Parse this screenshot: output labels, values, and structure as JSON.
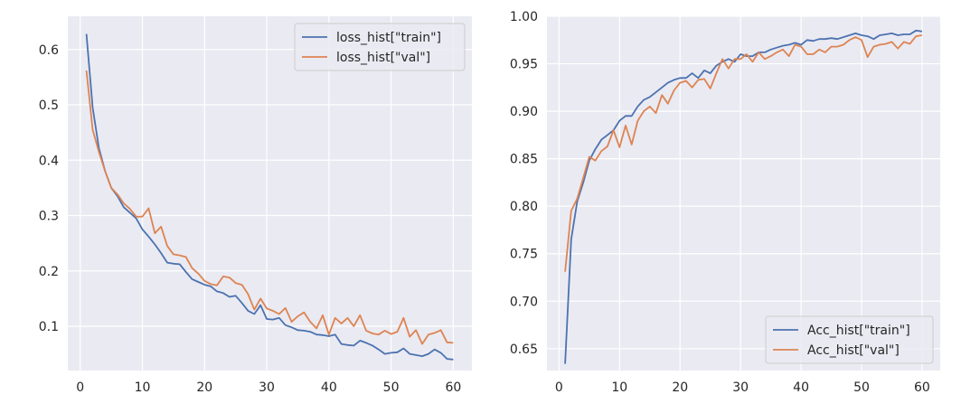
{
  "chart_data": [
    {
      "type": "line",
      "title": "",
      "xlabel": "",
      "ylabel": "",
      "xlim": [
        -2,
        63
      ],
      "ylim": [
        0.02,
        0.66
      ],
      "xticks": [
        0,
        10,
        20,
        30,
        40,
        50,
        60
      ],
      "yticks": [
        0.1,
        0.2,
        0.3,
        0.4,
        0.5,
        0.6
      ],
      "grid": true,
      "legend_position": "top-right",
      "x": [
        1,
        2,
        3,
        4,
        5,
        6,
        7,
        8,
        9,
        10,
        11,
        12,
        13,
        14,
        15,
        16,
        17,
        18,
        19,
        20,
        21,
        22,
        23,
        24,
        25,
        26,
        27,
        28,
        29,
        30,
        31,
        32,
        33,
        34,
        35,
        36,
        37,
        38,
        39,
        40,
        41,
        42,
        43,
        44,
        45,
        46,
        47,
        48,
        49,
        50,
        51,
        52,
        53,
        54,
        55,
        56,
        57,
        58,
        59,
        60
      ],
      "series": [
        {
          "name": "loss_hist[\"train\"]",
          "color": "#4c72b0",
          "values": [
            0.628,
            0.495,
            0.422,
            0.38,
            0.35,
            0.335,
            0.315,
            0.305,
            0.295,
            0.275,
            0.262,
            0.248,
            0.232,
            0.215,
            0.213,
            0.212,
            0.198,
            0.185,
            0.18,
            0.175,
            0.172,
            0.163,
            0.16,
            0.153,
            0.155,
            0.142,
            0.128,
            0.122,
            0.138,
            0.113,
            0.112,
            0.115,
            0.102,
            0.098,
            0.093,
            0.092,
            0.09,
            0.085,
            0.084,
            0.082,
            0.085,
            0.068,
            0.066,
            0.065,
            0.074,
            0.07,
            0.065,
            0.058,
            0.05,
            0.052,
            0.053,
            0.06,
            0.05,
            0.048,
            0.046,
            0.05,
            0.058,
            0.052,
            0.041,
            0.04
          ]
        },
        {
          "name": "loss_hist[\"val\"]",
          "color": "#dd8452",
          "values": [
            0.562,
            0.455,
            0.415,
            0.38,
            0.35,
            0.338,
            0.322,
            0.312,
            0.298,
            0.298,
            0.313,
            0.268,
            0.28,
            0.245,
            0.23,
            0.228,
            0.225,
            0.205,
            0.195,
            0.182,
            0.176,
            0.174,
            0.19,
            0.188,
            0.178,
            0.175,
            0.158,
            0.13,
            0.15,
            0.132,
            0.128,
            0.122,
            0.133,
            0.108,
            0.118,
            0.125,
            0.108,
            0.096,
            0.12,
            0.085,
            0.115,
            0.105,
            0.115,
            0.1,
            0.12,
            0.092,
            0.087,
            0.085,
            0.092,
            0.086,
            0.09,
            0.115,
            0.081,
            0.093,
            0.068,
            0.085,
            0.088,
            0.093,
            0.071,
            0.07
          ]
        }
      ]
    },
    {
      "type": "line",
      "title": "",
      "xlabel": "",
      "ylabel": "",
      "xlim": [
        -2,
        63
      ],
      "ylim": [
        0.627,
        1.0
      ],
      "xticks": [
        0,
        10,
        20,
        30,
        40,
        50,
        60
      ],
      "yticks": [
        0.65,
        0.7,
        0.75,
        0.8,
        0.85,
        0.9,
        0.95,
        1.0
      ],
      "grid": true,
      "legend_position": "bottom-right",
      "x": [
        1,
        2,
        3,
        4,
        5,
        6,
        7,
        8,
        9,
        10,
        11,
        12,
        13,
        14,
        15,
        16,
        17,
        18,
        19,
        20,
        21,
        22,
        23,
        24,
        25,
        26,
        27,
        28,
        29,
        30,
        31,
        32,
        33,
        34,
        35,
        36,
        37,
        38,
        39,
        40,
        41,
        42,
        43,
        44,
        45,
        46,
        47,
        48,
        49,
        50,
        51,
        52,
        53,
        54,
        55,
        56,
        57,
        58,
        59,
        60
      ],
      "series": [
        {
          "name": "Acc_hist[\"train\"]",
          "color": "#4c72b0",
          "values": [
            0.634,
            0.765,
            0.805,
            0.825,
            0.848,
            0.86,
            0.87,
            0.875,
            0.88,
            0.89,
            0.895,
            0.895,
            0.905,
            0.912,
            0.915,
            0.92,
            0.925,
            0.93,
            0.933,
            0.935,
            0.935,
            0.94,
            0.935,
            0.943,
            0.94,
            0.948,
            0.952,
            0.955,
            0.952,
            0.96,
            0.958,
            0.958,
            0.962,
            0.962,
            0.965,
            0.967,
            0.969,
            0.97,
            0.972,
            0.97,
            0.975,
            0.974,
            0.976,
            0.976,
            0.977,
            0.976,
            0.978,
            0.98,
            0.982,
            0.98,
            0.979,
            0.976,
            0.98,
            0.981,
            0.982,
            0.98,
            0.981,
            0.981,
            0.985,
            0.984
          ]
        },
        {
          "name": "Acc_hist[\"val\"]",
          "color": "#dd8452",
          "values": [
            0.731,
            0.795,
            0.808,
            0.83,
            0.852,
            0.848,
            0.858,
            0.863,
            0.88,
            0.862,
            0.885,
            0.865,
            0.89,
            0.9,
            0.905,
            0.898,
            0.917,
            0.908,
            0.922,
            0.93,
            0.932,
            0.925,
            0.933,
            0.934,
            0.924,
            0.94,
            0.955,
            0.945,
            0.955,
            0.955,
            0.96,
            0.952,
            0.962,
            0.955,
            0.958,
            0.962,
            0.965,
            0.958,
            0.97,
            0.968,
            0.96,
            0.96,
            0.965,
            0.962,
            0.968,
            0.968,
            0.97,
            0.975,
            0.978,
            0.975,
            0.957,
            0.968,
            0.97,
            0.971,
            0.973,
            0.966,
            0.973,
            0.971,
            0.979,
            0.98
          ]
        }
      ]
    }
  ]
}
